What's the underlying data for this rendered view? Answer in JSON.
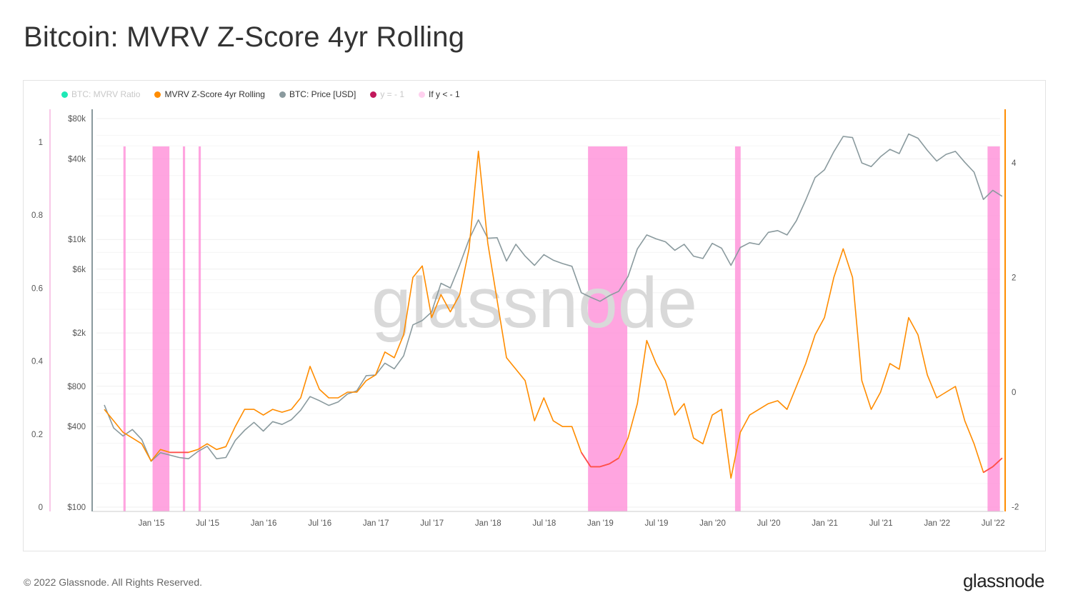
{
  "title": "Bitcoin: MVRV Z-Score 4yr Rolling",
  "footer": "© 2022 Glassnode. All Rights Reserved.",
  "logo": "glassnode",
  "watermark": "glassnode",
  "legend": [
    {
      "label": "BTC: MVRV Ratio",
      "color": "#1de9b6",
      "dimmed": true
    },
    {
      "label": "MVRV Z-Score 4yr Rolling",
      "color": "#ff8c00",
      "dimmed": false
    },
    {
      "label": "BTC: Price [USD]",
      "color": "#8a9a9e",
      "dimmed": false
    },
    {
      "label": "y = - 1",
      "color": "#c2185b",
      "dimmed": true
    },
    {
      "label": "If y < - 1",
      "color": "#ffd1ef",
      "dimmed": false
    }
  ],
  "chart_data": {
    "type": "line",
    "x_start": 2014.58,
    "x_step_months": 1,
    "x_range": [
      2014.51,
      2022.6
    ],
    "x_ticks": [
      {
        "t": 2015.0,
        "label": "Jan '15"
      },
      {
        "t": 2015.5,
        "label": "Jul '15"
      },
      {
        "t": 2016.0,
        "label": "Jan '16"
      },
      {
        "t": 2016.5,
        "label": "Jul '16"
      },
      {
        "t": 2017.0,
        "label": "Jan '17"
      },
      {
        "t": 2017.5,
        "label": "Jul '17"
      },
      {
        "t": 2018.0,
        "label": "Jan '18"
      },
      {
        "t": 2018.5,
        "label": "Jul '18"
      },
      {
        "t": 2019.0,
        "label": "Jan '19"
      },
      {
        "t": 2019.5,
        "label": "Jul '19"
      },
      {
        "t": 2020.0,
        "label": "Jan '20"
      },
      {
        "t": 2020.5,
        "label": "Jul '20"
      },
      {
        "t": 2021.0,
        "label": "Jan '21"
      },
      {
        "t": 2021.5,
        "label": "Jul '21"
      },
      {
        "t": 2022.0,
        "label": "Jan '22"
      },
      {
        "t": 2022.5,
        "label": "Jul '22"
      }
    ],
    "left_axis": {
      "range": [
        0,
        1.0
      ],
      "ticks": [
        {
          "v": 0,
          "label": "0"
        },
        {
          "v": 0.2,
          "label": "0.2"
        },
        {
          "v": 0.4,
          "label": "0.4"
        },
        {
          "v": 0.6,
          "label": "0.6"
        },
        {
          "v": 0.8,
          "label": "0.8"
        },
        {
          "v": 1,
          "label": "1"
        }
      ]
    },
    "price_axis": {
      "scale": "log",
      "range": [
        100,
        80000
      ],
      "ticks": [
        {
          "v": 100,
          "label": "$100"
        },
        {
          "v": 400,
          "label": "$400"
        },
        {
          "v": 800,
          "label": "$800"
        },
        {
          "v": 2000,
          "label": "$2k"
        },
        {
          "v": 6000,
          "label": "$6k"
        },
        {
          "v": 10000,
          "label": "$10k"
        },
        {
          "v": 40000,
          "label": "$40k"
        },
        {
          "v": 80000,
          "label": "$80k"
        }
      ]
    },
    "z_axis": {
      "range": [
        -2,
        4.8
      ],
      "ticks": [
        {
          "v": -2,
          "label": "-2"
        },
        {
          "v": 0,
          "label": "0"
        },
        {
          "v": 2,
          "label": "2"
        },
        {
          "v": 4,
          "label": "4"
        }
      ]
    },
    "series": [
      {
        "name": "BTC: Price [USD]",
        "color": "#8a9a9e",
        "axis": "price",
        "values": [
          580,
          390,
          340,
          380,
          320,
          220,
          255,
          245,
          235,
          230,
          260,
          285,
          230,
          235,
          315,
          375,
          430,
          370,
          435,
          415,
          450,
          530,
          670,
          625,
          575,
          610,
          700,
          740,
          960,
          970,
          1190,
          1080,
          1350,
          2300,
          2480,
          2870,
          4700,
          4340,
          6450,
          10000,
          14000,
          10200,
          10300,
          6900,
          9200,
          7500,
          6400,
          7700,
          7000,
          6600,
          6300,
          4000,
          3700,
          3450,
          3800,
          4100,
          5300,
          8500,
          10800,
          10100,
          9600,
          8300,
          9200,
          7500,
          7200,
          9350,
          8600,
          6400,
          8700,
          9450,
          9150,
          11300,
          11650,
          10800,
          13800,
          19700,
          29000,
          33100,
          45200,
          58800,
          57700,
          37300,
          35000,
          41500,
          47100,
          43800,
          61300,
          57000,
          46300,
          38500,
          43200,
          45500,
          37700,
          31800,
          19900,
          23300,
          21000
        ]
      },
      {
        "name": "MVRV Z-Score 4yr Rolling",
        "color": "#ff8c00",
        "below_color": "#ff4d4d",
        "axis": "z",
        "values": [
          -0.3,
          -0.5,
          -0.7,
          -0.8,
          -0.9,
          -1.2,
          -1.0,
          -1.05,
          -1.05,
          -1.05,
          -1.0,
          -0.9,
          -1.0,
          -0.95,
          -0.6,
          -0.3,
          -0.3,
          -0.4,
          -0.3,
          -0.35,
          -0.3,
          -0.1,
          0.45,
          0.05,
          -0.1,
          -0.1,
          0.0,
          0.0,
          0.2,
          0.3,
          0.7,
          0.6,
          1.0,
          2.0,
          2.2,
          1.3,
          1.7,
          1.4,
          1.7,
          2.5,
          4.2,
          2.6,
          1.6,
          0.6,
          0.4,
          0.2,
          -0.5,
          -0.1,
          -0.5,
          -0.6,
          -0.6,
          -1.05,
          -1.3,
          -1.3,
          -1.25,
          -1.15,
          -0.8,
          -0.2,
          0.9,
          0.5,
          0.2,
          -0.4,
          -0.2,
          -0.8,
          -0.9,
          -0.4,
          -0.3,
          -1.5,
          -0.7,
          -0.4,
          -0.3,
          -0.2,
          -0.15,
          -0.3,
          0.1,
          0.5,
          1.0,
          1.3,
          2.0,
          2.5,
          2.0,
          0.2,
          -0.3,
          0.0,
          0.5,
          0.4,
          1.3,
          1.0,
          0.3,
          -0.1,
          0.0,
          0.1,
          -0.5,
          -0.9,
          -1.4,
          -1.3,
          -1.15
        ]
      }
    ],
    "threshold": -1,
    "shaded_periods": [
      [
        2014.75,
        2014.77
      ],
      [
        2015.01,
        2015.16
      ],
      [
        2015.28,
        2015.3
      ],
      [
        2015.42,
        2015.44
      ],
      [
        2018.89,
        2019.24
      ],
      [
        2020.2,
        2020.25
      ],
      [
        2022.45,
        2022.56
      ]
    ]
  }
}
